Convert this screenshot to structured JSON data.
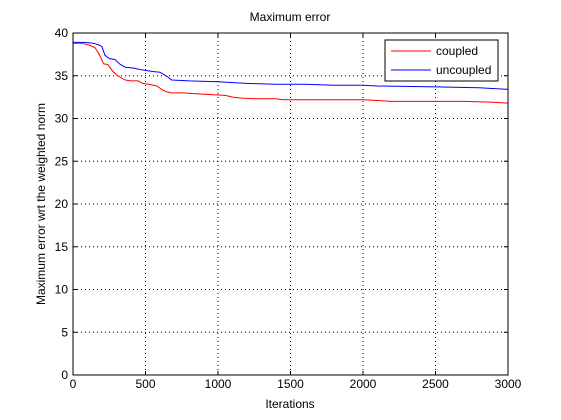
{
  "chart_data": {
    "type": "line",
    "title": "Maximum error",
    "xlabel": "Iterations",
    "ylabel": "Maximum error wrt the weighted norm",
    "xlim": [
      0,
      3000
    ],
    "ylim": [
      0,
      40
    ],
    "xticks": [
      0,
      500,
      1000,
      1500,
      2000,
      2500,
      3000
    ],
    "yticks": [
      0,
      5,
      10,
      15,
      20,
      25,
      30,
      35,
      40
    ],
    "grid": true,
    "legend_position": "top-right",
    "series": [
      {
        "name": "coupled",
        "color": "#ff0000",
        "x": [
          0,
          60,
          110,
          150,
          170,
          190,
          210,
          240,
          270,
          300,
          330,
          360,
          400,
          450,
          480,
          520,
          580,
          620,
          650,
          680,
          750,
          850,
          950,
          1050,
          1100,
          1150,
          1250,
          1400,
          1450,
          1600,
          1800,
          2000,
          2100,
          2200,
          2300,
          2500,
          2700,
          2900,
          3000
        ],
        "y": [
          38.8,
          38.8,
          38.6,
          38.3,
          37.8,
          37.2,
          36.4,
          36.3,
          35.6,
          35.1,
          34.8,
          34.5,
          34.4,
          34.4,
          34.1,
          34.0,
          33.8,
          33.3,
          33.1,
          33.0,
          33.0,
          32.9,
          32.8,
          32.7,
          32.5,
          32.4,
          32.3,
          32.3,
          32.2,
          32.2,
          32.2,
          32.2,
          32.1,
          32.0,
          32.0,
          32.0,
          32.0,
          31.9,
          31.8
        ]
      },
      {
        "name": "uncoupled",
        "color": "#0000ff",
        "x": [
          0,
          80,
          140,
          180,
          200,
          220,
          250,
          290,
          320,
          360,
          420,
          470,
          550,
          600,
          650,
          680,
          800,
          1000,
          1100,
          1200,
          1400,
          1600,
          1800,
          2000,
          2100,
          2500,
          2800,
          3000
        ],
        "y": [
          38.9,
          38.9,
          38.8,
          38.6,
          38.4,
          37.4,
          37.0,
          36.9,
          36.4,
          36.0,
          35.9,
          35.7,
          35.5,
          35.4,
          34.9,
          34.5,
          34.4,
          34.3,
          34.2,
          34.1,
          34.0,
          34.0,
          33.9,
          33.9,
          33.8,
          33.7,
          33.6,
          33.4
        ]
      }
    ]
  }
}
